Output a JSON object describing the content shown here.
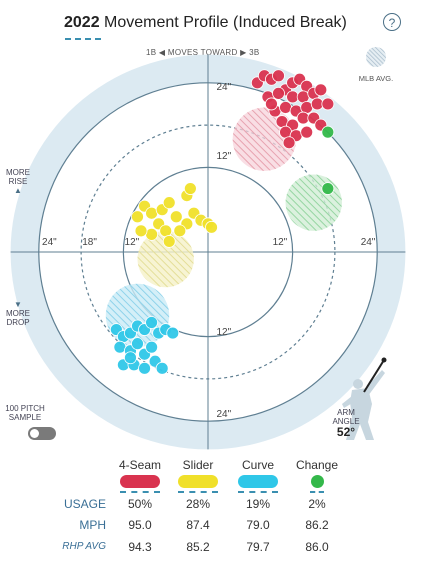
{
  "header": {
    "year": "2022",
    "title": "Movement Profile (Induced Break)",
    "help_label": "?"
  },
  "direction": {
    "left": "1B",
    "label": "MOVES TOWARD",
    "right": "3B"
  },
  "legend": {
    "mlb_avg": "MLB AVG."
  },
  "side_labels": {
    "rise": "MORE\nRISE",
    "drop": "MORE\nDROP"
  },
  "rings": {
    "labels": [
      "12\"",
      "18\"",
      "24\""
    ],
    "top": [
      "24\"",
      "12\""
    ],
    "bottom": [
      "12\"",
      "24\""
    ],
    "left": [
      "24\"",
      "18\"",
      "12\""
    ],
    "right": [
      "12\"",
      "24\""
    ]
  },
  "sample_toggle": {
    "label": "100 PITCH\nSAMPLE",
    "on": false
  },
  "arm_angle": {
    "label": "ARM\nANGLE",
    "value": "52°"
  },
  "pitches": [
    {
      "name": "4-Seam",
      "color": "#d9334f",
      "usage": "50%",
      "mph": "95.0",
      "rhp_avg": "94.3"
    },
    {
      "name": "Slider",
      "color": "#f0e02a",
      "usage": "28%",
      "mph": "87.4",
      "rhp_avg": "85.2"
    },
    {
      "name": "Curve",
      "color": "#2fc7e8",
      "usage": "19%",
      "mph": "79.0",
      "rhp_avg": "79.7"
    },
    {
      "name": "Change",
      "color": "#34b84a",
      "usage": "2%",
      "mph": "86.2",
      "rhp_avg": "86.0"
    }
  ],
  "table_labels": {
    "usage": "USAGE",
    "mph": "MPH",
    "rhp_avg": "RHP AVG"
  },
  "chart_data": {
    "type": "scatter",
    "x_unit": "inches horizontal break (toward 3B positive)",
    "y_unit": "inches induced vertical break",
    "range": [
      -28,
      28
    ],
    "series": [
      {
        "name": "4-Seam",
        "color": "#d9334f",
        "points": [
          [
            7,
            24
          ],
          [
            8,
            25
          ],
          [
            9,
            24.5
          ],
          [
            10,
            25
          ],
          [
            11,
            23
          ],
          [
            12,
            24
          ],
          [
            13,
            24.5
          ],
          [
            14,
            23.5
          ],
          [
            8.5,
            22
          ],
          [
            10,
            22.5
          ],
          [
            12,
            22
          ],
          [
            13.5,
            22
          ],
          [
            15,
            22.5
          ],
          [
            9.5,
            20
          ],
          [
            11,
            20.5
          ],
          [
            12.5,
            20
          ],
          [
            14,
            20.5
          ],
          [
            15.5,
            21
          ],
          [
            10.5,
            18.5
          ],
          [
            12,
            18
          ],
          [
            13.5,
            19
          ],
          [
            15,
            19
          ],
          [
            11,
            17
          ],
          [
            12.5,
            16.5
          ],
          [
            14,
            17
          ],
          [
            11.5,
            15.5
          ],
          [
            16,
            18
          ],
          [
            9,
            21
          ],
          [
            16,
            23
          ],
          [
            17,
            21
          ]
        ],
        "mlb_avg": {
          "x": 8,
          "y": 16,
          "r": 4.5
        }
      },
      {
        "name": "Slider",
        "color": "#f0e02a",
        "points": [
          [
            -10,
            5
          ],
          [
            -9,
            6.5
          ],
          [
            -8,
            5.5
          ],
          [
            -7,
            4
          ],
          [
            -6.5,
            6
          ],
          [
            -5.5,
            7
          ],
          [
            -4.5,
            5
          ],
          [
            -3,
            4
          ],
          [
            -2,
            5.5
          ],
          [
            -1,
            4.5
          ],
          [
            0,
            4
          ],
          [
            0.5,
            3.5
          ],
          [
            -4,
            3
          ],
          [
            -6,
            3
          ],
          [
            -8,
            2.5
          ],
          [
            -9.5,
            3
          ],
          [
            -5.5,
            1.5
          ],
          [
            -3,
            8
          ],
          [
            -2.5,
            9
          ]
        ],
        "mlb_avg": {
          "x": -6,
          "y": -1,
          "r": 4
        }
      },
      {
        "name": "Curve",
        "color": "#2fc7e8",
        "points": [
          [
            -13,
            -11
          ],
          [
            -12,
            -12
          ],
          [
            -11,
            -11.5
          ],
          [
            -10,
            -10.5
          ],
          [
            -9,
            -11
          ],
          [
            -8,
            -10
          ],
          [
            -7,
            -11.5
          ],
          [
            -6,
            -11
          ],
          [
            -5,
            -11.5
          ],
          [
            -12.5,
            -13.5
          ],
          [
            -11,
            -14
          ],
          [
            -10,
            -13
          ],
          [
            -9,
            -14.5
          ],
          [
            -8,
            -13.5
          ],
          [
            -12,
            -16
          ],
          [
            -10.5,
            -16
          ],
          [
            -9,
            -16.5
          ],
          [
            -7.5,
            -15.5
          ],
          [
            -6.5,
            -16.5
          ],
          [
            -11,
            -15
          ]
        ],
        "mlb_avg": {
          "x": -10,
          "y": -9,
          "r": 4.5
        }
      },
      {
        "name": "Change",
        "color": "#34b84a",
        "points": [
          [
            17,
            17
          ],
          [
            17,
            9
          ]
        ],
        "mlb_avg": {
          "x": 15,
          "y": 7,
          "r": 4
        }
      }
    ]
  }
}
